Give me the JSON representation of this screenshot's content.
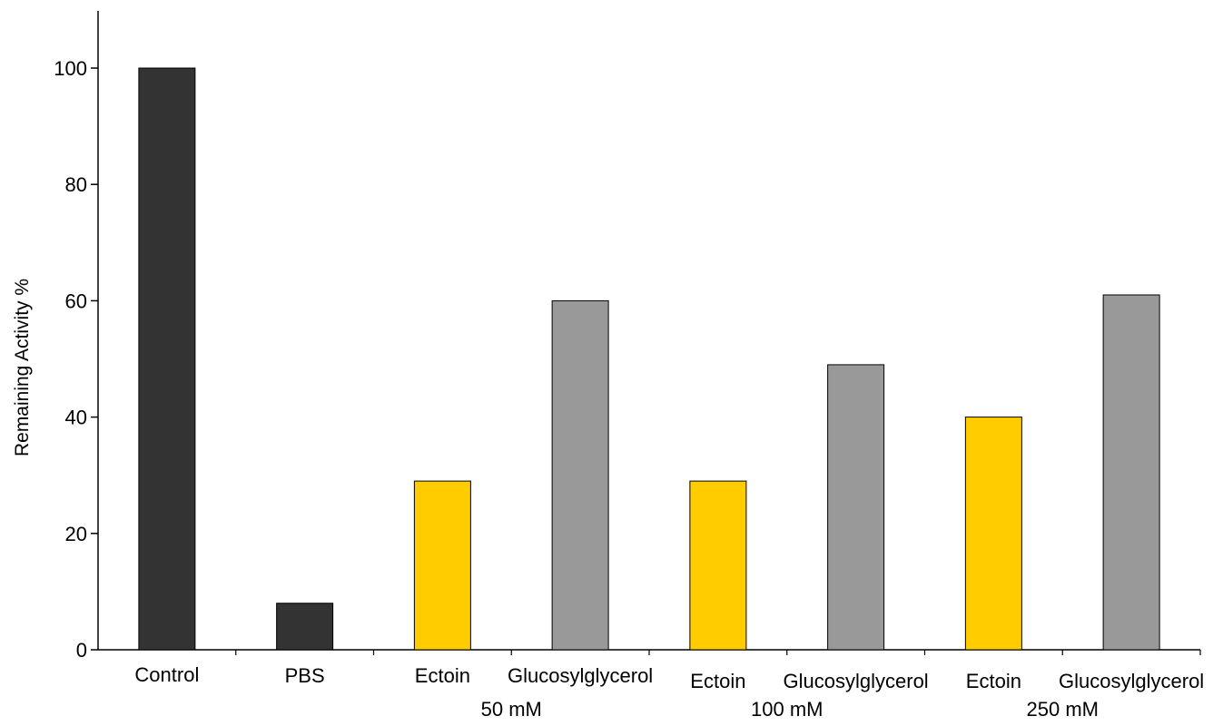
{
  "chart_data": {
    "type": "bar",
    "title": "",
    "xlabel": "",
    "ylabel": "Remaining Activity %",
    "ylim": [
      0,
      110
    ],
    "yticks": [
      0,
      20,
      40,
      60,
      80,
      100
    ],
    "grid": false,
    "categories": [
      "Control",
      "PBS",
      "Ectoin",
      "Glucosylglycerol",
      "Ectoin",
      "Glucosylglycerol",
      "Ectoin",
      "Glucosylglycerol"
    ],
    "values": [
      100,
      8,
      29,
      60,
      29,
      49,
      40,
      61
    ],
    "bar_colors": [
      "#333333",
      "#333333",
      "#ffcc00",
      "#999999",
      "#ffcc00",
      "#999999",
      "#ffcc00",
      "#999999"
    ],
    "groups": [
      {
        "label": "50 mM",
        "members": [
          2,
          3
        ]
      },
      {
        "label": "100 mM",
        "members": [
          4,
          5
        ]
      },
      {
        "label": "250 mM",
        "members": [
          6,
          7
        ]
      }
    ]
  }
}
